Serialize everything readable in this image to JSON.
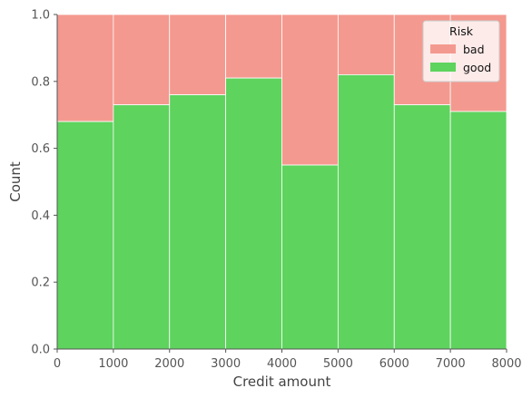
{
  "chart_data": {
    "type": "bar",
    "stacked": true,
    "normalized": true,
    "x_bin_edges": [
      0,
      1000,
      2000,
      3000,
      4000,
      5000,
      6000,
      7000,
      8000
    ],
    "series": [
      {
        "name": "good",
        "color": "#5ed35e",
        "values": [
          0.68,
          0.73,
          0.76,
          0.81,
          0.55,
          0.82,
          0.73,
          0.71
        ]
      },
      {
        "name": "bad",
        "color": "#f4998f",
        "values": [
          0.32,
          0.27,
          0.24,
          0.19,
          0.45,
          0.18,
          0.27,
          0.29
        ]
      }
    ],
    "title": "",
    "xlabel": "Credit amount",
    "ylabel": "Count",
    "xlim": [
      0,
      8000
    ],
    "ylim": [
      0,
      1.0
    ],
    "x_ticks": [
      "0",
      "1000",
      "2000",
      "3000",
      "4000",
      "5000",
      "6000",
      "7000",
      "8000"
    ],
    "y_ticks": [
      "0.0",
      "0.2",
      "0.4",
      "0.6",
      "0.8",
      "1.0"
    ],
    "legend": {
      "title": "Risk",
      "placement": "top-right",
      "entries": [
        {
          "label": "bad",
          "color": "#f4998f"
        },
        {
          "label": "good",
          "color": "#5ed35e"
        }
      ]
    },
    "grid": false
  }
}
